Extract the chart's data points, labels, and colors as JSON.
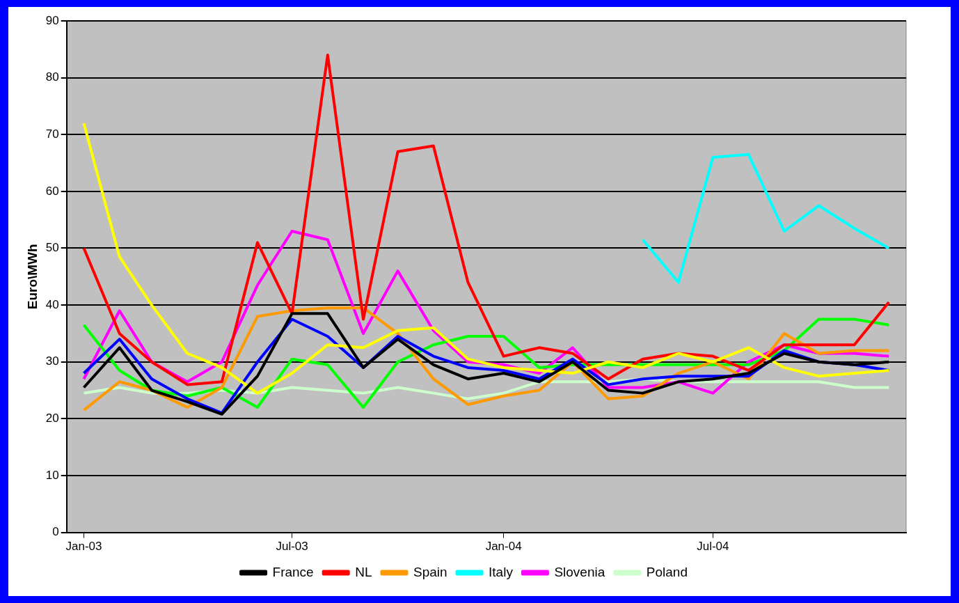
{
  "chart_data": {
    "type": "line",
    "ylabel": "Euro\\MWh",
    "x": [
      "2003-01",
      "2003-02",
      "2003-03",
      "2003-04",
      "2003-05",
      "2003-06",
      "2003-07",
      "2003-08",
      "2003-09",
      "2003-10",
      "2003-11",
      "2003-12",
      "2004-01",
      "2004-02",
      "2004-03",
      "2004-04",
      "2004-05",
      "2004-06",
      "2004-07",
      "2004-08",
      "2004-09",
      "2004-10",
      "2004-11",
      "2004-12"
    ],
    "xlim": [
      "2002-12-17",
      "2004-12-16"
    ],
    "xticks": [
      {
        "value": "2003-01",
        "label": "Jan-03"
      },
      {
        "value": "2003-07",
        "label": "Jul-03"
      },
      {
        "value": "2004-01",
        "label": "Jan-04"
      },
      {
        "value": "2004-07",
        "label": "Jul-04"
      }
    ],
    "ylim": [
      0,
      90
    ],
    "yticks": [
      0,
      10,
      20,
      30,
      40,
      50,
      60,
      70,
      80,
      90
    ],
    "grid": "y",
    "legend": "bottom",
    "marker": "none",
    "line_style": "solid",
    "series": [
      {
        "name": "France",
        "color": "#000000",
        "values": [
          25.5,
          32.5,
          25,
          23,
          20.8,
          27.5,
          38.5,
          38.5,
          29,
          34,
          29.5,
          27,
          28,
          26.5,
          30,
          25,
          24.5,
          26.5,
          27,
          28,
          31.5,
          30,
          29.5,
          30
        ]
      },
      {
        "color": "#ffff00",
        "values": [
          72,
          48.5,
          40,
          31.5,
          29,
          24.5,
          28,
          33,
          32.5,
          35.5,
          36,
          30.5,
          29,
          28.5,
          28,
          30,
          29,
          31.5,
          30,
          32.5,
          29,
          27.5,
          28,
          28.5
        ]
      },
      {
        "color": "#0000ff",
        "values": [
          28,
          34,
          27,
          23.5,
          21,
          30,
          37.5,
          34.5,
          29,
          34.5,
          31,
          29,
          28.5,
          27,
          30.5,
          26,
          27,
          27.5,
          27.5,
          27.5,
          32,
          30,
          29.5,
          28.5
        ]
      },
      {
        "name": "NL",
        "color": "#ff0000",
        "values": [
          50,
          35,
          30,
          26,
          26.5,
          51,
          38.5,
          84,
          37.5,
          67,
          68,
          44,
          31,
          32.5,
          31.5,
          27,
          30.5,
          31.5,
          31,
          28.5,
          33,
          33,
          33,
          40.5
        ]
      },
      {
        "name": "Spain",
        "color": "#ff9900",
        "values": [
          21.5,
          26.5,
          25,
          22,
          25.5,
          38,
          39,
          39.5,
          39.5,
          35,
          27,
          22.5,
          24,
          25,
          30,
          23.5,
          24,
          28,
          30,
          27,
          35,
          31.5,
          32,
          32
        ]
      },
      {
        "color": "#00ff00",
        "values": [
          36.5,
          28.5,
          25,
          24,
          25.5,
          22,
          30.5,
          29.5,
          22,
          30,
          33,
          34.5,
          34.5,
          29,
          29.5,
          29.5,
          29.5,
          29.5,
          29.5,
          29.5,
          32,
          37.5,
          37.5,
          36.5
        ]
      },
      {
        "name": "Italy",
        "color": "#00ffff",
        "values": [
          null,
          null,
          null,
          null,
          null,
          null,
          null,
          null,
          null,
          null,
          null,
          null,
          null,
          null,
          null,
          null,
          51.5,
          44,
          66,
          66.5,
          53,
          57.5,
          53.5,
          50
        ]
      },
      {
        "name": "Slovenia",
        "color": "#ff00ff",
        "values": [
          27,
          39,
          30,
          26.5,
          30,
          43.5,
          53,
          51.5,
          35,
          46,
          35.5,
          30,
          29.5,
          28,
          32.5,
          25.5,
          25.5,
          26.5,
          24.5,
          30,
          33,
          31.5,
          31.5,
          31
        ]
      },
      {
        "name": "Poland",
        "color": "#ccffcc",
        "values": [
          24.5,
          25.5,
          24.5,
          24.5,
          25,
          24.5,
          25.5,
          25,
          24.5,
          25.5,
          24.5,
          23.5,
          24.5,
          26.5,
          26.5,
          26.5,
          27,
          26.5,
          26.5,
          26.5,
          26.5,
          26.5,
          25.5,
          25.5
        ]
      }
    ]
  }
}
